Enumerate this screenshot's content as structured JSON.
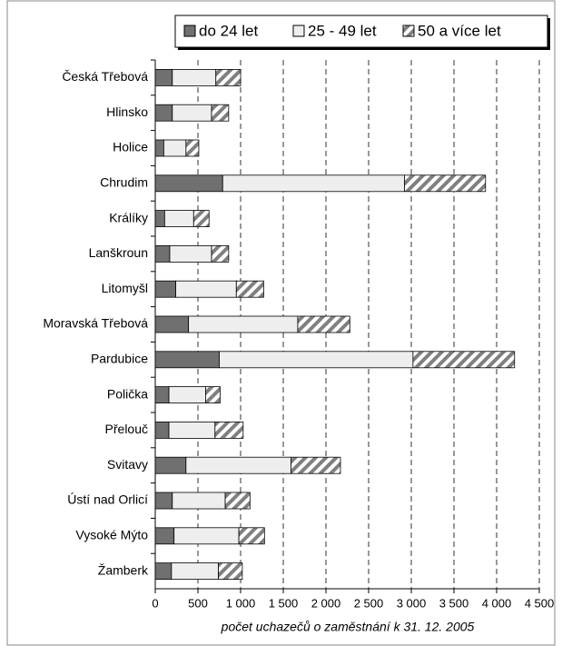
{
  "chart_data": {
    "type": "stacked_barh",
    "x_label": "počet uchazečů o zaměstnání k 31. 12. 2005",
    "categories": [
      "Česká Třebová",
      "Hlinsko",
      "Holice",
      "Chrudim",
      "Králíky",
      "Lanškroun",
      "Litomyšl",
      "Moravská Třebová",
      "Pardubice",
      "Polička",
      "Přelouč",
      "Svitavy",
      "Ústí nad Orlicí",
      "Vysoké Mýto",
      "Žamberk"
    ],
    "series": [
      {
        "name": "do 24 let",
        "color": "#707070",
        "values": [
          200,
          200,
          100,
          790,
          110,
          170,
          240,
          390,
          750,
          160,
          160,
          360,
          200,
          220,
          190
        ]
      },
      {
        "name": "25 - 49 let",
        "color": "#eeeeee",
        "values": [
          510,
          460,
          260,
          2130,
          340,
          490,
          710,
          1280,
          2270,
          430,
          540,
          1230,
          620,
          760,
          550
        ]
      },
      {
        "name": "50 a více let",
        "color": "#808080",
        "hatch": true,
        "values": [
          290,
          200,
          150,
          950,
          180,
          200,
          320,
          610,
          1190,
          170,
          330,
          580,
          290,
          300,
          280
        ]
      }
    ],
    "xlim": [
      0,
      4500
    ],
    "xticks": [
      0,
      500,
      {
        "value": 1000,
        "label": "1 000"
      },
      {
        "value": 1500,
        "label": "1 500"
      },
      {
        "value": 2000,
        "label": "2 000"
      },
      {
        "value": 2500,
        "label": "2 500"
      },
      {
        "value": 3000,
        "label": "3 000"
      },
      {
        "value": 3500,
        "label": "3 500"
      },
      {
        "value": 4000,
        "label": "4 000"
      },
      {
        "value": 4500,
        "label": "4 500"
      }
    ],
    "grid": true,
    "legend": "top"
  }
}
